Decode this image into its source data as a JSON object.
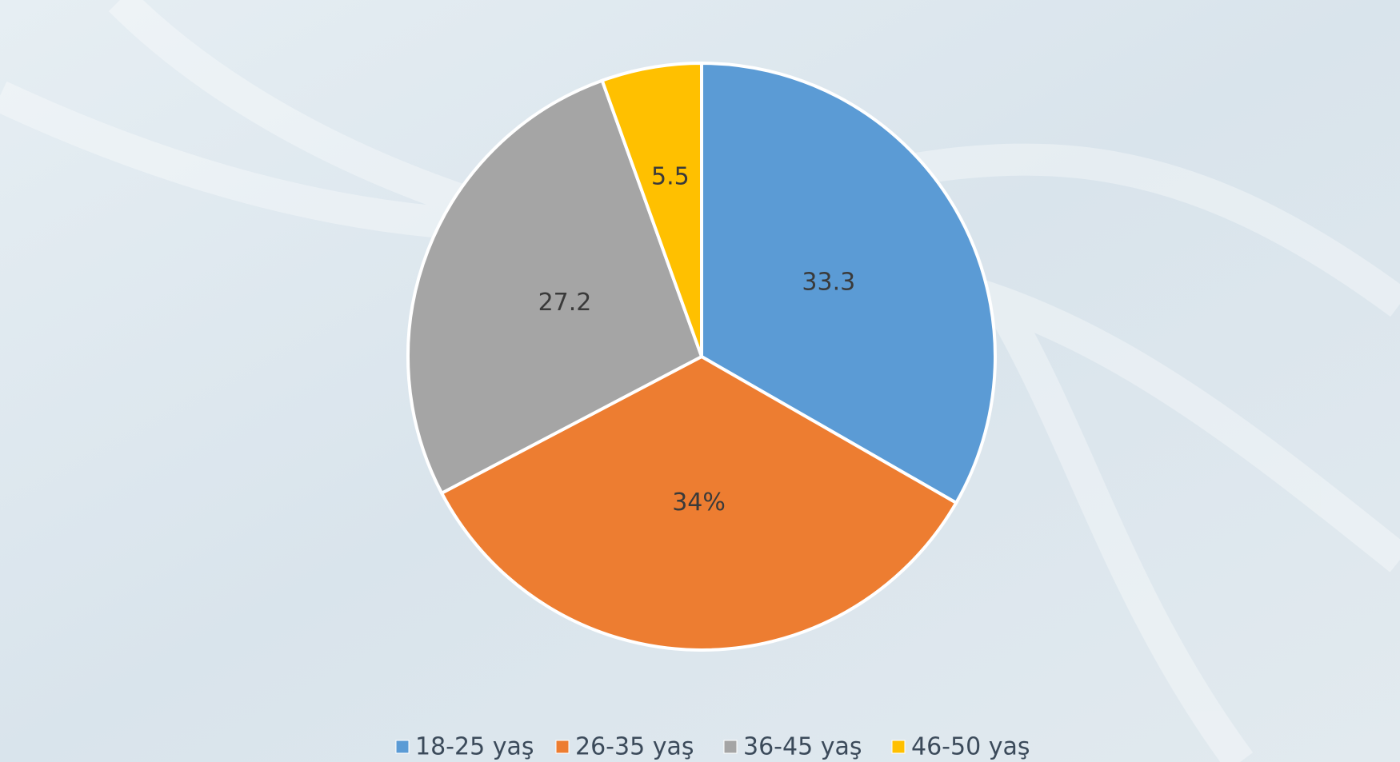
{
  "chart_data": {
    "type": "pie",
    "categories": [
      "18-25 yaş",
      "26-35 yaş",
      "36-45 yaş",
      "46-50 yaş"
    ],
    "values": [
      33.3,
      34,
      27.2,
      5.5
    ],
    "value_labels": [
      "33.3",
      "34%",
      "27.2",
      "5.5"
    ],
    "colors": [
      "#5b9bd5",
      "#ed7d31",
      "#a5a5a5",
      "#ffc000"
    ],
    "legend": "bottom"
  }
}
